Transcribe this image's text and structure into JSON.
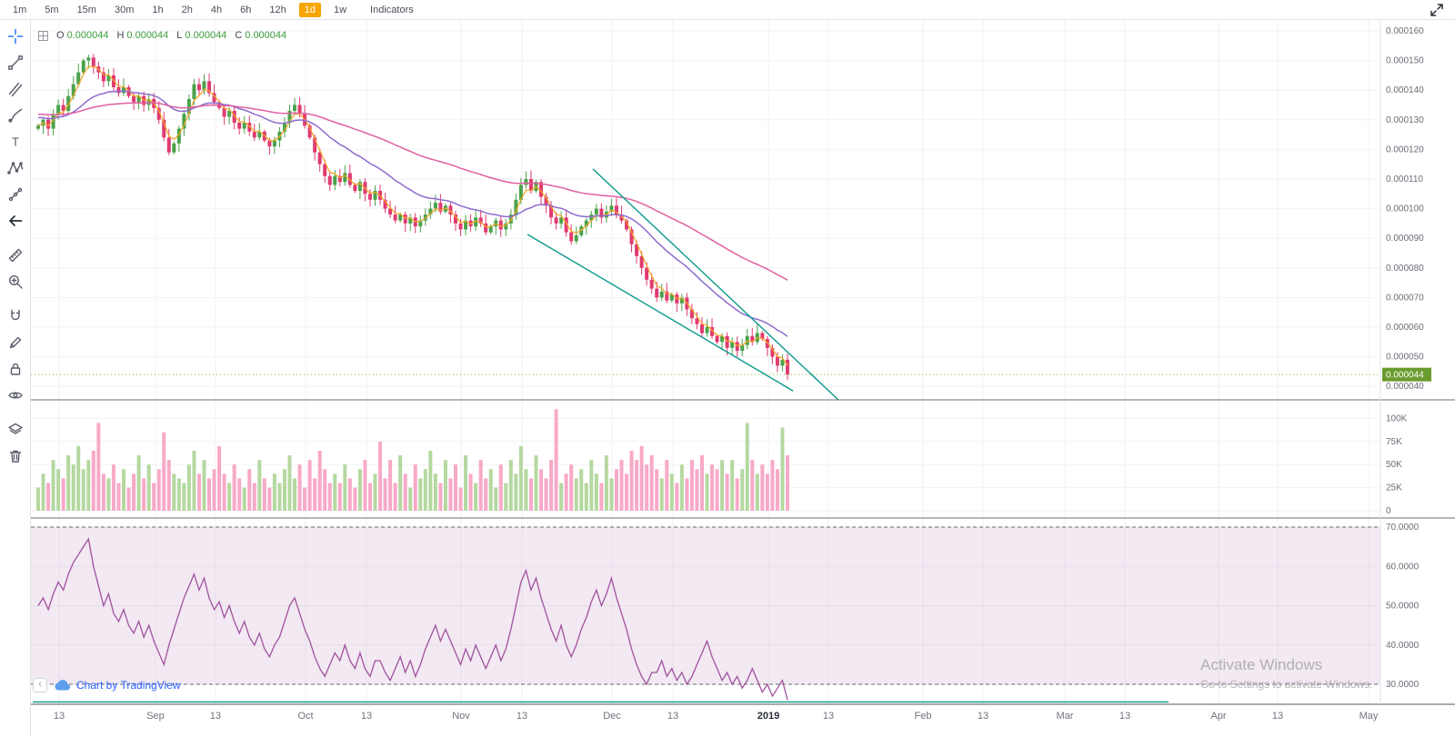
{
  "topbar": {
    "timeframes": [
      "1m",
      "5m",
      "15m",
      "30m",
      "1h",
      "2h",
      "4h",
      "6h",
      "12h",
      "1d",
      "1w"
    ],
    "active": "1d",
    "indicators_label": "Indicators"
  },
  "left_toolbar": {
    "tools": [
      {
        "name": "crosshair-tool",
        "gap": false
      },
      {
        "name": "trend-line-tool",
        "gap": false
      },
      {
        "name": "fib-lines-tool",
        "gap": false
      },
      {
        "name": "brush-tool",
        "gap": false
      },
      {
        "name": "text-tool",
        "gap": false
      },
      {
        "name": "xabcd-pattern-tool",
        "gap": false
      },
      {
        "name": "forecast-tool",
        "gap": false
      },
      {
        "name": "back-arrow-tool",
        "gap": false
      },
      {
        "name": "measure-tool",
        "gap": true
      },
      {
        "name": "zoom-in-tool",
        "gap": false
      },
      {
        "name": "magnet-tool",
        "gap": true
      },
      {
        "name": "stay-drawing-mode-tool",
        "gap": false
      },
      {
        "name": "lock-drawings-tool",
        "gap": false
      },
      {
        "name": "hide-drawings-tool",
        "gap": false
      },
      {
        "name": "object-tree-tool",
        "gap": true
      },
      {
        "name": "remove-drawings-tool",
        "gap": false
      }
    ]
  },
  "legend": {
    "items": [
      {
        "label": "O",
        "value": "0.000044"
      },
      {
        "label": "H",
        "value": "0.000044"
      },
      {
        "label": "L",
        "value": "0.000044"
      },
      {
        "label": "C",
        "value": "0.000044"
      }
    ]
  },
  "logo": {
    "text": "Chart by TradingView"
  },
  "misc": {
    "collapse_glyph": "‹"
  },
  "watermark": {
    "line1": "Activate Windows",
    "line2": "Go to Settings to activate Windows."
  },
  "time_axis": {
    "labels": [
      [
        31,
        "13"
      ],
      [
        137,
        "Sep"
      ],
      [
        203,
        "13"
      ],
      [
        302,
        "Oct"
      ],
      [
        369,
        "13"
      ],
      [
        473,
        "Nov"
      ],
      [
        540,
        "13"
      ],
      [
        639,
        "Dec"
      ],
      [
        706,
        "13"
      ],
      [
        811,
        "2019"
      ],
      [
        877,
        "13"
      ],
      [
        981,
        "Feb"
      ],
      [
        1047,
        "13"
      ],
      [
        1137,
        "Mar"
      ],
      [
        1203,
        "13"
      ],
      [
        1306,
        "Apr"
      ],
      [
        1371,
        "13"
      ],
      [
        1471,
        "May"
      ]
    ]
  },
  "colors": {
    "up": "#4ba24b",
    "down": "#e03a70",
    "vol_up": "#b5d8a0",
    "vol_down": "#f8a9c8",
    "rsi_line": "#a0519e",
    "rsi_band": "#c39ac3",
    "trend": "#0a9a8a",
    "last_price": "#7cb342",
    "last_tag": "#6a9b2e",
    "axis_text": "#696d76",
    "grid": "#f0f2f5",
    "accent_tf": "#f7a600"
  },
  "chart_data": [
    {
      "type": "candlestick",
      "name": "price",
      "price_unit": 1e-06,
      "ylim_micro": [
        35,
        164
      ],
      "y_ticks_micro": [
        160,
        150,
        140,
        130,
        120,
        110,
        100,
        90,
        80,
        70,
        60,
        50,
        40
      ],
      "last_price_micro": 44,
      "last_price_label": "0.000044",
      "closes_micro": [
        128,
        130,
        127,
        132,
        135,
        133,
        138,
        142,
        146,
        150,
        151,
        148,
        146,
        143,
        145,
        141,
        139,
        141,
        138,
        136,
        138,
        135,
        137,
        134,
        130,
        124,
        119,
        122,
        127,
        132,
        137,
        142,
        140,
        143,
        139,
        136,
        134,
        131,
        133,
        129,
        127,
        129,
        126,
        124,
        126,
        123,
        121,
        123,
        126,
        129,
        133,
        135,
        132,
        128,
        124,
        119,
        115,
        111,
        108,
        111,
        109,
        112,
        108,
        106,
        109,
        105,
        103,
        106,
        103,
        100,
        98,
        96,
        98,
        95,
        97,
        94,
        96,
        98,
        100,
        102,
        99,
        101,
        98,
        95,
        93,
        96,
        94,
        97,
        95,
        92,
        94,
        96,
        93,
        95,
        98,
        103,
        108,
        110,
        106,
        109,
        104,
        101,
        97,
        95,
        97,
        92,
        89,
        91,
        94,
        96,
        98,
        100,
        97,
        99,
        101,
        98,
        96,
        93,
        88,
        84,
        80,
        76,
        73,
        70,
        72,
        69,
        71,
        68,
        70,
        66,
        63,
        61,
        58,
        60,
        57,
        55,
        57,
        53,
        55,
        52,
        54,
        57,
        55,
        58,
        56,
        53,
        50,
        47,
        49,
        44
      ],
      "moving_averages": [
        {
          "name": "ma-fast",
          "alpha": 0.45,
          "color": "#f5a623",
          "width": 1.2
        },
        {
          "name": "ma-mid",
          "alpha": 0.09,
          "color": "#8f6bce",
          "init": 131,
          "width": 1.5
        },
        {
          "name": "ma-slow",
          "alpha": 0.03,
          "color": "#e060a0",
          "init": 132,
          "width": 1.5
        }
      ],
      "trendlines": [
        {
          "i1": 110.3,
          "p1": 113.4,
          "i2": 159.1,
          "p2": 35.5
        },
        {
          "i1": 97.3,
          "p1": 91.3,
          "i2": 150.1,
          "p2": 38.5
        }
      ]
    },
    {
      "type": "bar",
      "name": "volume",
      "y_ticks": [
        {
          "v": 100,
          "label": "100K"
        },
        {
          "v": 75,
          "label": "75K"
        },
        {
          "v": 50,
          "label": "50K"
        },
        {
          "v": 25,
          "label": "25K"
        },
        {
          "v": 0,
          "label": "0"
        }
      ],
      "values_k": [
        25,
        40,
        30,
        55,
        45,
        35,
        60,
        50,
        70,
        45,
        55,
        65,
        95,
        40,
        35,
        50,
        30,
        45,
        25,
        40,
        60,
        35,
        50,
        30,
        45,
        85,
        55,
        40,
        35,
        30,
        50,
        65,
        40,
        55,
        35,
        45,
        70,
        40,
        30,
        50,
        35,
        25,
        45,
        30,
        55,
        35,
        25,
        40,
        30,
        45,
        60,
        35,
        50,
        25,
        55,
        35,
        65,
        45,
        30,
        40,
        30,
        50,
        35,
        25,
        45,
        55,
        30,
        40,
        75,
        35,
        55,
        30,
        60,
        40,
        25,
        50,
        35,
        45,
        65,
        40,
        30,
        55,
        35,
        50,
        25,
        60,
        40,
        30,
        55,
        35,
        45,
        25,
        50,
        30,
        55,
        40,
        70,
        45,
        35,
        60,
        45,
        35,
        55,
        110,
        30,
        40,
        50,
        35,
        45,
        30,
        55,
        40,
        30,
        60,
        35,
        45,
        55,
        40,
        65,
        55,
        70,
        50,
        60,
        45,
        35,
        55,
        40,
        30,
        50,
        35,
        55,
        45,
        60,
        40,
        50,
        45,
        55,
        40,
        55,
        35,
        45,
        95,
        55,
        40,
        50,
        40,
        55,
        45,
        90,
        60
      ]
    },
    {
      "type": "line",
      "name": "rsi",
      "upper_band": 70,
      "lower_band": 30,
      "y_ticks": [
        70,
        60,
        50,
        40,
        30
      ],
      "teal_ray_level": 25.5,
      "teal_ray_end_frac": 0.843,
      "values": [
        50,
        52,
        49,
        53,
        56,
        54,
        58,
        61,
        63,
        65,
        67,
        60,
        55,
        50,
        53,
        48,
        46,
        49,
        45,
        43,
        46,
        42,
        45,
        41,
        38,
        35,
        40,
        44,
        48,
        52,
        55,
        58,
        54,
        57,
        52,
        49,
        51,
        47,
        50,
        46,
        43,
        46,
        42,
        40,
        43,
        39,
        37,
        40,
        42,
        46,
        50,
        52,
        48,
        44,
        41,
        37,
        34,
        32,
        35,
        38,
        36,
        40,
        36,
        34,
        38,
        34,
        32,
        36,
        36,
        33,
        31,
        34,
        37,
        33,
        36,
        32,
        35,
        39,
        42,
        45,
        41,
        44,
        41,
        38,
        35,
        39,
        36,
        40,
        37,
        34,
        37,
        40,
        36,
        39,
        44,
        50,
        56,
        59,
        54,
        57,
        52,
        48,
        44,
        41,
        45,
        40,
        37,
        40,
        44,
        47,
        51,
        54,
        50,
        53,
        57,
        52,
        48,
        44,
        39,
        35,
        32,
        30,
        33,
        33,
        36,
        32,
        34,
        31,
        33,
        30,
        32,
        35,
        38,
        41,
        37,
        34,
        31,
        33,
        30,
        32,
        29,
        31,
        34,
        31,
        28,
        30,
        27,
        29,
        31,
        26
      ]
    }
  ]
}
